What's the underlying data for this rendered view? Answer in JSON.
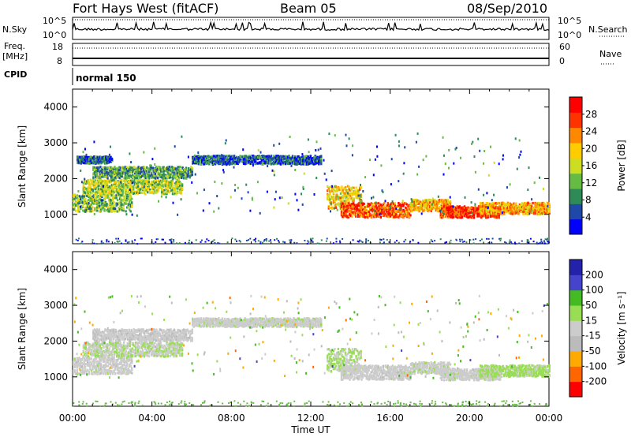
{
  "header": {
    "station": "Fort Hays West (fitACF)",
    "beam": "Beam 05",
    "date": "08/Sep/2010"
  },
  "status_panel": {
    "nsky_label": "N.Sky",
    "nsearch_label": "N.Search",
    "freq_label_1": "Freq.",
    "freq_label_2": "[MHz]",
    "nave_label": "Nave",
    "cpid_label": "CPID",
    "cpid_value": "normal 150",
    "noise_tick_top_left": "10^5",
    "noise_tick_bottom_left": "10^0",
    "noise_tick_top_right": "10^5",
    "noise_tick_bottom_right": "10^0",
    "freq_tick_top": "18",
    "freq_tick_bottom": "8",
    "nave_tick_top": "60",
    "nave_tick_bottom": "0"
  },
  "colors": {
    "power_scale": [
      "#0000ff",
      "#1f48a8",
      "#2e8b57",
      "#66bb44",
      "#ccdd22",
      "#ffcc00",
      "#ff8800",
      "#ff3300",
      "#ff0000"
    ],
    "velocity_scale": [
      "#ff0000",
      "#ff6600",
      "#ffaa00",
      "#bbbbbb",
      "#cccccc",
      "#99dd55",
      "#44bb22",
      "#4444cc",
      "#2222aa"
    ]
  },
  "chart_data": [
    {
      "type": "heatmap",
      "panel": "power",
      "ylabel": "Slant Range [km]",
      "xlabel": "",
      "x_ticks": [
        "00:00",
        "04:00",
        "08:00",
        "12:00",
        "16:00",
        "20:00",
        "00:00"
      ],
      "y_ticks": [
        "1000",
        "2000",
        "3000",
        "4000"
      ],
      "xlim_hours": [
        0,
        24
      ],
      "ylim_km": [
        180,
        4500
      ],
      "colorbar": {
        "label": "Power [dB]",
        "ticks": [
          "4",
          "8",
          "12",
          "16",
          "20",
          "24",
          "28"
        ],
        "range": [
          0,
          30
        ]
      },
      "echo_bands_time_start_end_range_center_width_power": [
        [
          0.0,
          3.0,
          1350,
          300,
          12
        ],
        [
          0.5,
          5.5,
          1800,
          250,
          14
        ],
        [
          1.0,
          6.0,
          2200,
          200,
          10
        ],
        [
          0.2,
          2.0,
          2550,
          120,
          6
        ],
        [
          6.0,
          12.5,
          2550,
          150,
          6
        ],
        [
          12.8,
          14.5,
          1500,
          400,
          18
        ],
        [
          13.5,
          17.0,
          1150,
          250,
          24
        ],
        [
          17.0,
          19.0,
          1280,
          200,
          20
        ],
        [
          18.5,
          21.5,
          1100,
          200,
          26
        ],
        [
          20.5,
          24.0,
          1200,
          200,
          20
        ]
      ]
    },
    {
      "type": "heatmap",
      "panel": "velocity",
      "ylabel": "Slant Range [km]",
      "xlabel": "Time UT",
      "x_ticks": [
        "00:00",
        "04:00",
        "08:00",
        "12:00",
        "16:00",
        "20:00",
        "00:00"
      ],
      "y_ticks": [
        "1000",
        "2000",
        "3000",
        "4000"
      ],
      "xlim_hours": [
        0,
        24
      ],
      "ylim_km": [
        180,
        4500
      ],
      "colorbar": {
        "label": "Velocity [m s⁻¹]",
        "ticks": [
          "-200",
          "-100",
          "-50",
          "-15",
          "15",
          "50",
          "100",
          "200"
        ],
        "range": [
          -250,
          250
        ]
      },
      "echo_bands_time_start_end_range_center_width_velocity": [
        [
          0.0,
          3.0,
          1350,
          300,
          0
        ],
        [
          0.5,
          5.5,
          1800,
          250,
          20
        ],
        [
          1.0,
          6.0,
          2200,
          200,
          -10
        ],
        [
          6.0,
          12.5,
          2550,
          150,
          5
        ],
        [
          12.8,
          14.5,
          1500,
          400,
          30
        ],
        [
          13.5,
          17.0,
          1150,
          250,
          0
        ],
        [
          17.0,
          19.0,
          1280,
          200,
          10
        ],
        [
          18.5,
          21.5,
          1100,
          200,
          0
        ],
        [
          20.5,
          24.0,
          1200,
          200,
          40
        ]
      ]
    }
  ]
}
